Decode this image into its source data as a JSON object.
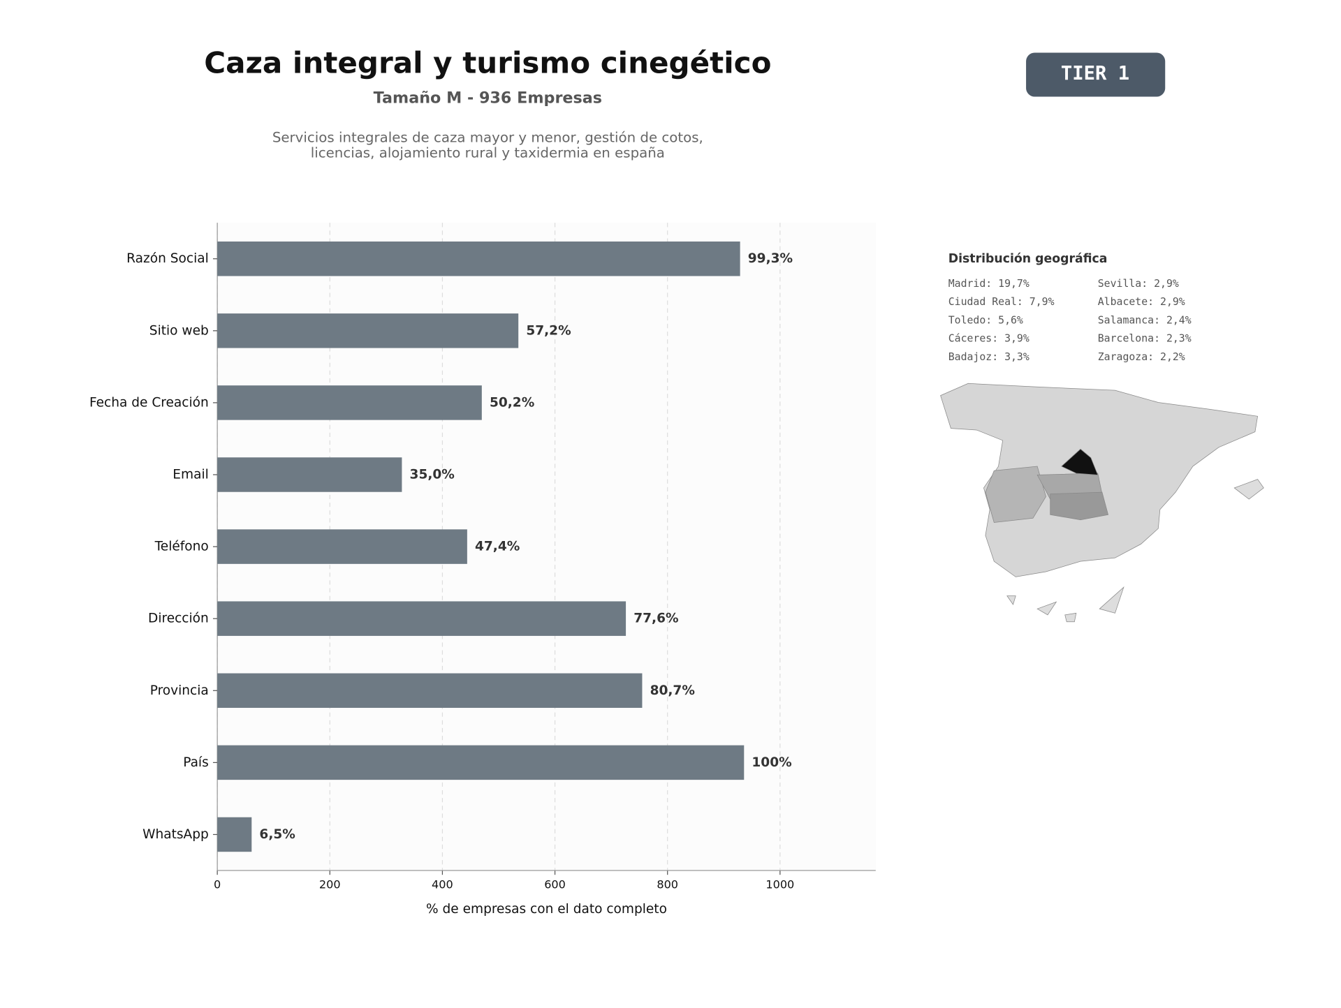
{
  "chart_data": {
    "type": "bar",
    "orientation": "horizontal",
    "title": "Caza integral y turismo cinegético",
    "subtitle": "Tamaño M - 936 Empresas",
    "description": [
      "Servicios integrales de caza mayor y menor, gestión de cotos,",
      "licencias, alojamiento rural y taxidermia en españa"
    ],
    "badge": "TIER 1",
    "x_label": "% de empresas con el dato completo",
    "categories": [
      "Razón Social",
      "Sitio web",
      "Fecha de Creación",
      "Email",
      "Teléfono",
      "Dirección",
      "Provincia",
      "País",
      "WhatsApp"
    ],
    "values": [
      929,
      535,
      470,
      328,
      444,
      726,
      755,
      936,
      61
    ],
    "value_labels": [
      "99,3%",
      "57,2%",
      "50,2%",
      "35,0%",
      "47,4%",
      "77,6%",
      "80,7%",
      "100%",
      "6,5%"
    ],
    "color": "#6e7a84",
    "xlim": [
      0,
      1170
    ],
    "xticks": [
      0,
      200,
      400,
      600,
      800,
      1000
    ],
    "grid": true,
    "geo": {
      "title": "Distribución geográfica",
      "entries": [
        "Madrid: 19,7%",
        "Ciudad Real: 7,9%",
        "Toledo: 5,6%",
        "Cáceres: 3,9%",
        "Badajoz: 3,3%",
        "Sevilla: 2,9%",
        "Albacete: 2,9%",
        "Salamanca: 2,4%",
        "Barcelona: 2,3%",
        "Zaragoza: 2,2%"
      ]
    }
  }
}
